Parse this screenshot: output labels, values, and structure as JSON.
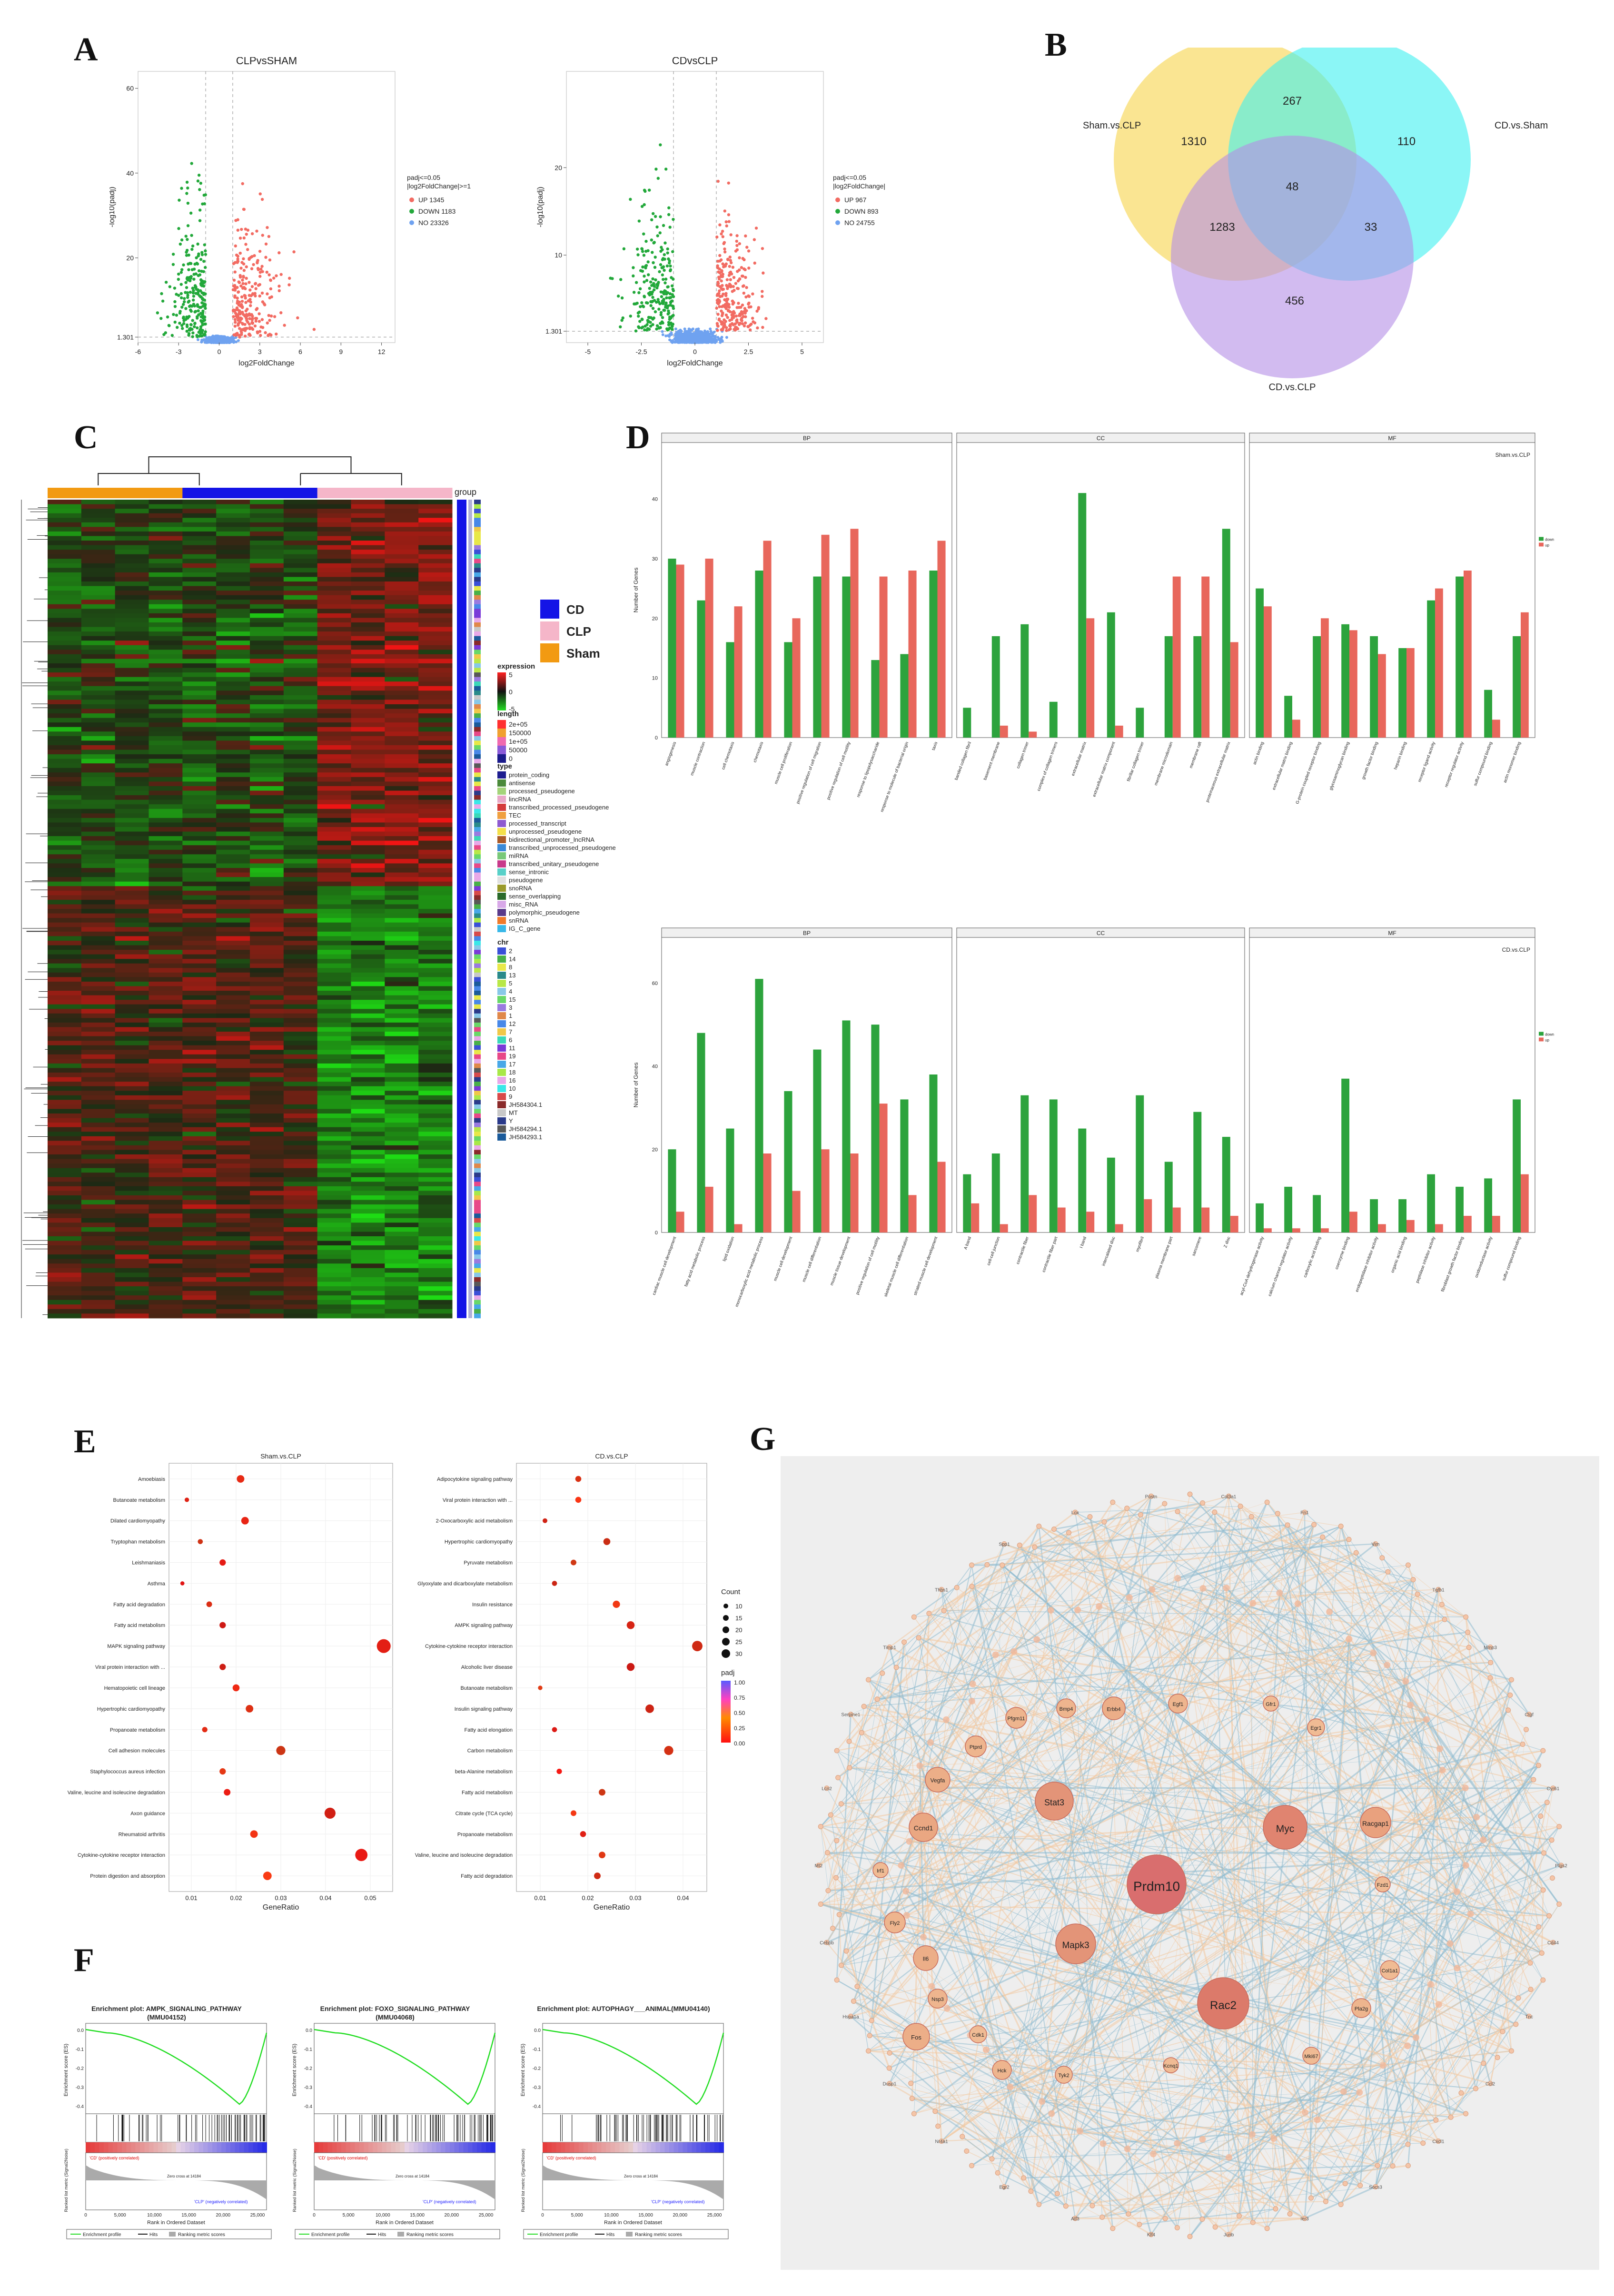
{
  "panels": {
    "A": "A",
    "B": "B",
    "C": "C",
    "D": "D",
    "E": "E",
    "F": "F",
    "G": "G"
  },
  "chart_data": [
    {
      "id": "A1",
      "type": "scatter",
      "title": "CLPvsSHAM",
      "xlabel": "log2FoldChange",
      "ylabel": "-log10(padj)",
      "xlim": [
        -6,
        13
      ],
      "ylim": [
        0,
        64
      ],
      "x_ticks": [
        "-6",
        "-3",
        "0",
        "3",
        "6",
        "9",
        "12"
      ],
      "y_ticks": [
        "1.301",
        "20",
        "40",
        "60"
      ],
      "threshold_lines": {
        "x": [
          -1,
          1
        ],
        "y": 1.301
      },
      "legend_title": [
        "padj<=0.05",
        "|log2FoldChange|>=1"
      ],
      "series": [
        {
          "name": "UP 1345",
          "color": "#f26b62"
        },
        {
          "name": "DOWN 1183",
          "color": "#22a83a"
        },
        {
          "name": "NO 23326",
          "color": "#6fa2f0"
        }
      ]
    },
    {
      "id": "A2",
      "type": "scatter",
      "title": "CDvsCLP",
      "xlabel": "log2FoldChange",
      "ylabel": "-log10(padj)",
      "xlim": [
        -6,
        6
      ],
      "ylim": [
        0,
        31
      ],
      "x_ticks": [
        "-5",
        "-2.5",
        "0",
        "2.5",
        "5"
      ],
      "y_ticks": [
        "1.301",
        "10",
        "20"
      ],
      "threshold_lines": {
        "x": [
          -1,
          1
        ],
        "y": 1.301
      },
      "legend_title": [
        "padj<=0.05",
        "|log2FoldChange|>=1"
      ],
      "series": [
        {
          "name": "UP 967",
          "color": "#f26b62"
        },
        {
          "name": "DOWN 893",
          "color": "#22a83a"
        },
        {
          "name": "NO 24755",
          "color": "#6fa2f0"
        }
      ]
    },
    {
      "id": "B",
      "type": "venn",
      "sets": [
        {
          "name": "Sham.vs.CLP",
          "color": "#f7d44a"
        },
        {
          "name": "CD.vs.Sham",
          "color": "#3ef0f0"
        },
        {
          "name": "CD.vs.CLP",
          "color": "#b48ee6"
        }
      ],
      "regions": {
        "only_sham": 1310,
        "only_cdsham": 110,
        "only_cdclp": 456,
        "sham_cdsham": 267,
        "sham_cdclp": 1283,
        "cdsham_cdclp": 33,
        "all": 48
      }
    },
    {
      "id": "C",
      "type": "heatmap",
      "group_label": "group",
      "groups": [
        {
          "name": "CD",
          "color": "#1414e6"
        },
        {
          "name": "CLP",
          "color": "#f5b6c9"
        },
        {
          "name": "Sham",
          "color": "#f29a12"
        }
      ],
      "legend_expression": {
        "title": "expression",
        "ticks": [
          "5",
          "0",
          "-5"
        ]
      },
      "legend_length": {
        "title": "length",
        "ticks": [
          "2e+05",
          "150000",
          "1e+05",
          "50000",
          "0"
        ]
      },
      "legend_type": {
        "title": "type",
        "items": [
          "protein_coding",
          "antisense",
          "processed_pseudogene",
          "lincRNA",
          "transcribed_processed_pseudogene",
          "TEC",
          "processed_transcript",
          "unprocessed_pseudogene",
          "bidirectional_promoter_lncRNA",
          "transcribed_unprocessed_pseudogene",
          "miRNA",
          "transcribed_unitary_pseudogene",
          "sense_intronic",
          "pseudogene",
          "snoRNA",
          "sense_overlapping",
          "misc_RNA",
          "polymorphic_pseudogene",
          "snRNA",
          "IG_C_gene"
        ],
        "colors": [
          "#1d1d8f",
          "#4a8a3a",
          "#a4d47a",
          "#e8a8c8",
          "#d43b3b",
          "#f0a040",
          "#8e5bd0",
          "#f4e04a",
          "#aa5a28",
          "#3a8ad8",
          "#78c878",
          "#c83a8a",
          "#58d0c8",
          "#e0e0e0",
          "#9a9a2a",
          "#2a6a2a",
          "#d8a8e8",
          "#5a3a8a",
          "#f07a2a",
          "#38b8e8"
        ]
      },
      "legend_chr": {
        "title": "chr",
        "items": [
          "2",
          "14",
          "8",
          "13",
          "5",
          "4",
          "15",
          "3",
          "1",
          "12",
          "7",
          "6",
          "11",
          "19",
          "17",
          "18",
          "16",
          "10",
          "9",
          "JH584304.1",
          "MT",
          "Y",
          "JH584294.1",
          "JH584293.1"
        ],
        "colors": [
          "#3a4fd8",
          "#48b048",
          "#e8e848",
          "#2a8a8a",
          "#b8e848",
          "#88c8e8",
          "#68d868",
          "#9a7ae0",
          "#e0884a",
          "#4888e8",
          "#f0c848",
          "#3ad8b8",
          "#7a3ad8",
          "#e84888",
          "#48a8e8",
          "#a8e848",
          "#e8a8e8",
          "#3ae8e8",
          "#d84a4a",
          "#8a2a2a",
          "#c8c8c8",
          "#2a3a8a",
          "#585858",
          "#1a5a9a"
        ]
      }
    },
    {
      "id": "D1",
      "type": "bar",
      "title": "Sham.vs.CLP",
      "ylabel": "Number of Genes",
      "facets": [
        "BP",
        "CC",
        "MF"
      ],
      "series": [
        {
          "name": "down",
          "color": "#2da33d"
        },
        {
          "name": "up",
          "color": "#e8675c"
        }
      ],
      "y_ticks": [
        "0",
        "10",
        "20",
        "30",
        "40"
      ],
      "facet_values": [
        {
          "categories": [
            "angiogenesis",
            "muscle contraction",
            "cell chemotaxis",
            "chemotaxis",
            "muscle cell proliferation",
            "positive regulation of cell migration",
            "positive regulation of cell motility",
            "response to lipopolysaccharide",
            "response to molecule of bacterial origin",
            "taxis"
          ],
          "down": [
            30,
            23,
            16,
            28,
            16,
            27,
            27,
            13,
            14,
            28
          ],
          "up": [
            29,
            30,
            22,
            33,
            20,
            34,
            35,
            27,
            28,
            33
          ]
        },
        {
          "categories": [
            "banded collagen fibril",
            "basement membrane",
            "collagen trimer",
            "complex of collagen trimers",
            "extracellular matrix",
            "extracellular matrix component",
            "fibrillar collagen trimer",
            "membrane microdomain",
            "membrane raft",
            "proteinaceous extracellular matrix"
          ],
          "down": [
            5,
            17,
            19,
            6,
            41,
            21,
            5,
            17,
            17,
            35
          ],
          "up": [
            0,
            2,
            1,
            0,
            20,
            2,
            0,
            27,
            27,
            16
          ]
        },
        {
          "categories": [
            "actin binding",
            "extracellular matrix binding",
            "G-protein coupled receptor binding",
            "glycosaminoglycan binding",
            "growth factor binding",
            "heparin binding",
            "receptor ligand activity",
            "receptor regulator activity",
            "sulfur compound binding",
            "actin monomer binding"
          ],
          "down": [
            25,
            7,
            17,
            19,
            17,
            15,
            23,
            27,
            8,
            17
          ],
          "up": [
            22,
            3,
            20,
            18,
            14,
            15,
            25,
            28,
            3,
            21
          ]
        }
      ]
    },
    {
      "id": "D2",
      "type": "bar",
      "title": "CD.vs.CLP",
      "ylabel": "Number of Genes",
      "facets": [
        "BP",
        "CC",
        "MF"
      ],
      "series": [
        {
          "name": "down",
          "color": "#2da33d"
        },
        {
          "name": "up",
          "color": "#e8675c"
        }
      ],
      "y_ticks": [
        "0",
        "20",
        "40",
        "60"
      ],
      "facet_values": [
        {
          "categories": [
            "cardiac muscle cell development",
            "fatty acid metabolic process",
            "lipid oxidation",
            "monocarboxylic acid metabolic process",
            "muscle cell development",
            "muscle cell differentiation",
            "muscle tissue development",
            "positive regulation of cell motility",
            "skeletal muscle cell differentiation",
            "striated muscle cell development"
          ],
          "down": [
            20,
            48,
            25,
            61,
            34,
            44,
            51,
            50,
            32,
            38
          ],
          "up": [
            5,
            11,
            2,
            19,
            10,
            20,
            19,
            31,
            9,
            17
          ]
        },
        {
          "categories": [
            "A band",
            "cell-cell junction",
            "contractile fiber",
            "contractile fiber part",
            "I band",
            "intercalated disc",
            "myofibril",
            "plasma membrane part",
            "sarcomere",
            "Z disc"
          ],
          "down": [
            14,
            19,
            33,
            32,
            25,
            18,
            33,
            17,
            29,
            23
          ],
          "up": [
            7,
            2,
            9,
            6,
            5,
            2,
            8,
            6,
            6,
            4
          ]
        },
        {
          "categories": [
            "acyl-CoA dehydrogenase activity",
            "calcium channel regulator activity",
            "carboxylic acid binding",
            "coenzyme binding",
            "endopeptidase inhibitor activity",
            "organic acid binding",
            "peptidase inhibitor activity",
            "fibroblast growth factor binding",
            "oxidoreductase activity",
            "sulfur compound binding"
          ],
          "down": [
            7,
            11,
            9,
            37,
            8,
            8,
            14,
            11,
            13,
            32
          ],
          "up": [
            1,
            1,
            1,
            5,
            2,
            3,
            2,
            4,
            4,
            14
          ]
        }
      ]
    },
    {
      "id": "E1",
      "type": "scatter",
      "title": "Sham.vs.CLP",
      "xlabel": "GeneRatio",
      "x_ticks": [
        "0.01",
        "0.02",
        "0.03",
        "0.04",
        "0.05"
      ],
      "xlim": [
        0.005,
        0.055
      ],
      "categories": [
        "Amoebiasis",
        "Butanoate metabolism",
        "Dilated cardiomyopathy",
        "Tryptophan metabolism",
        "Leishmaniasis",
        "Asthma",
        "Fatty acid degradation",
        "Fatty acid metabolism",
        "MAPK signaling pathway",
        "Viral protein interaction with ...",
        "Hematopoietic cell lineage",
        "Hypertrophic cardiomyopathy",
        "Propanoate metabolism",
        "Cell adhesion molecules",
        "Staphylococcus aureus infection",
        "Valine, leucine and isoleucine degradation",
        "Axon guidance",
        "Rheumatoid arthritis",
        "Cytokine-cytokine receptor interaction",
        "Protein digestion and absorption"
      ],
      "gene_ratio": [
        0.021,
        0.009,
        0.022,
        0.012,
        0.017,
        0.008,
        0.014,
        0.017,
        0.053,
        0.017,
        0.02,
        0.023,
        0.013,
        0.03,
        0.017,
        0.018,
        0.041,
        0.024,
        0.048,
        0.027
      ],
      "count": [
        15,
        5,
        15,
        7,
        11,
        4,
        9,
        11,
        35,
        11,
        13,
        15,
        8,
        20,
        11,
        12,
        26,
        15,
        30,
        18
      ]
    },
    {
      "id": "E2",
      "type": "scatter",
      "title": "CD.vs.CLP",
      "xlabel": "GeneRatio",
      "x_ticks": [
        "0.01",
        "0.02",
        "0.03",
        "0.04"
      ],
      "xlim": [
        0.005,
        0.045
      ],
      "categories": [
        "Adipocytokine signaling pathway",
        "Viral protein interaction with ...",
        "2-Oxocarboxylic acid metabolism",
        "Hypertrophic cardiomyopathy",
        "Pyruvate metabolism",
        "Glyoxylate and dicarboxylate metabolism",
        "Insulin resistance",
        "AMPK signaling pathway",
        "Cytokine-cytokine receptor interaction",
        "Alcoholic liver disease",
        "Butanoate metabolism",
        "Insulin signaling pathway",
        "Fatty acid elongation",
        "Carbon metabolism",
        "beta-Alanine metabolism",
        "Fatty acid metabolism",
        "Citrate cycle (TCA cycle)",
        "Propanoate metabolism",
        "Valine, leucine and isoleucine degradation",
        "Fatty acid degradation"
      ],
      "gene_ratio": [
        0.018,
        0.018,
        0.011,
        0.024,
        0.017,
        0.013,
        0.026,
        0.029,
        0.043,
        0.029,
        0.01,
        0.033,
        0.013,
        0.037,
        0.014,
        0.023,
        0.017,
        0.019,
        0.023,
        0.022
      ],
      "count": [
        10,
        10,
        6,
        13,
        9,
        7,
        14,
        16,
        24,
        16,
        5,
        18,
        7,
        20,
        8,
        12,
        9,
        10,
        12,
        12
      ],
      "size_legend": {
        "title": "Count",
        "values": [
          "10",
          "15",
          "20",
          "25",
          "30"
        ]
      },
      "color_legend": {
        "title": "padj",
        "values": [
          "1.00",
          "0.75",
          "0.50",
          "0.25",
          "0.00"
        ]
      }
    },
    {
      "id": "F",
      "type": "line",
      "plots": [
        {
          "title1": "Enrichment plot: AMPK_SIGNALING_PATHWAY",
          "title2": "(MMU04152)"
        },
        {
          "title1": "Enrichment plot: FOXO_SIGNALING_PATHWAY",
          "title2": "(MMU04068)"
        },
        {
          "title1": "Enrichment plot: AUTOPHAGY___ANIMAL(MMU04140)",
          "title2": ""
        }
      ],
      "ylabel_top": "Enrichment score (ES)",
      "ylabel_bottom": "Ranked list metric (Signal2Noise)",
      "xlabel": "Rank in Ordered Dataset",
      "x_ticks": [
        "0",
        "5,000",
        "10,000",
        "15,000",
        "20,000",
        "25,000"
      ],
      "es_ticks": [
        "0.0",
        "-0.1",
        "-0.2",
        "-0.3",
        "-0.4"
      ],
      "pos_label": "'CD' (positively correlated)",
      "neg_label": "'CLP' (negatively correlated)",
      "zero_label": "Zero cross at 14184",
      "legend": [
        "Enrichment profile",
        "Hits",
        "Ranking metric scores"
      ]
    },
    {
      "id": "G",
      "type": "network",
      "hub_nodes": [
        "Prdm10",
        "Myc",
        "Rac2",
        "Stat3",
        "Mapk3",
        "Racgap1",
        "Ccnd1",
        "Vegfa",
        "Fos",
        "Il6",
        "Erbb4",
        "Pfgm11",
        "Bmp4",
        "Egf1",
        "Ptprd",
        "Fly2",
        "Nsp3",
        "Pla2g",
        "Hck",
        "Tyk2",
        "Egr1",
        "Col1a1",
        "Cdk1",
        "Mki67",
        "Fzd1",
        "Kcnq1",
        "Irf1",
        "Gfr1"
      ],
      "ring_label_sample": [
        "Ptgs2",
        "Cd44",
        "Tnc",
        "Ccl2",
        "Cxcl1",
        "Socs3",
        "Ier3",
        "Junb",
        "Klf4",
        "Atf3",
        "Egr2",
        "Nr4a1",
        "Dusp1",
        "Hspa1a",
        "Cebpb",
        "Mt2",
        "Lcn2",
        "Serpine1",
        "Timp1",
        "Thbs1",
        "Spp1",
        "Lox",
        "Postn",
        "Col3a1",
        "Fn1",
        "Vim",
        "Tgfb1",
        "Mmp3",
        "Ctgf",
        "Cyr61"
      ]
    }
  ]
}
